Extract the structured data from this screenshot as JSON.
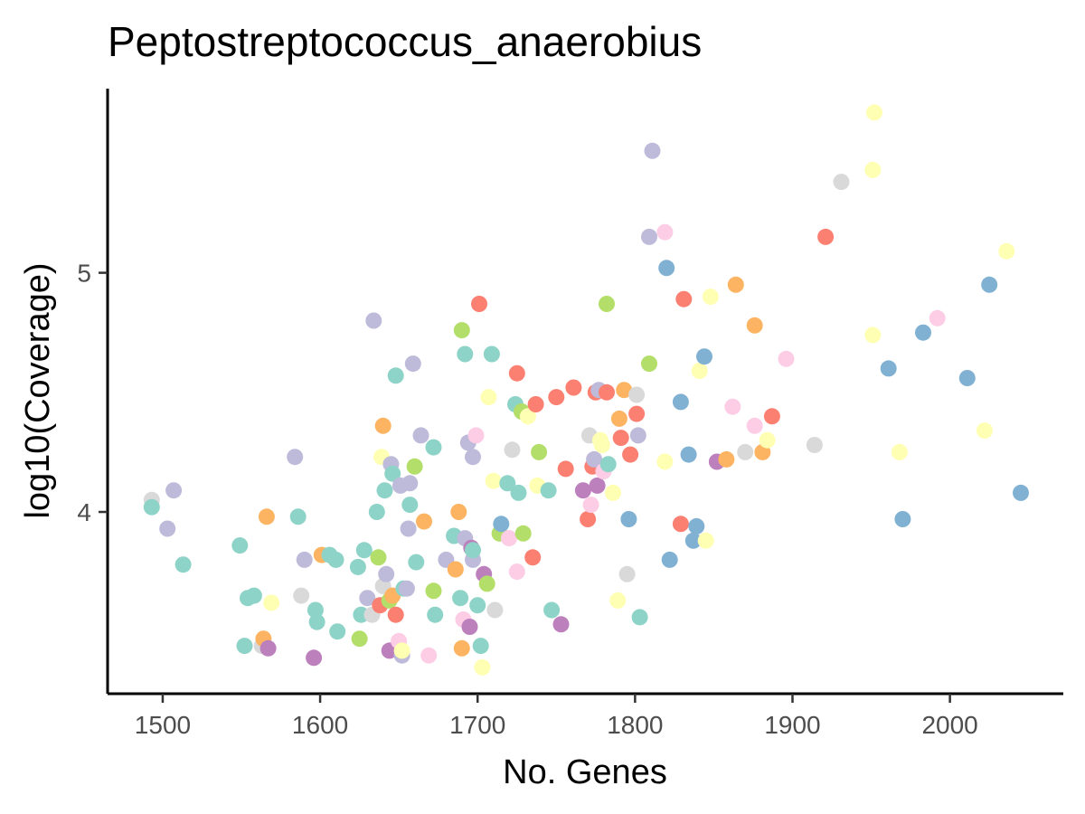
{
  "chart_data": {
    "type": "scatter",
    "title": "Peptostreptococcus_anaerobius",
    "xlabel": "No. Genes",
    "ylabel": "log10(Coverage)",
    "xlim": [
      1465,
      2072
    ],
    "ylim": [
      3.24,
      5.77
    ],
    "x_ticks": [
      1500,
      1600,
      1700,
      1800,
      1900,
      2000
    ],
    "x_tick_labels": [
      "1500",
      "1600",
      "1700",
      "1800",
      "1900",
      "2000"
    ],
    "y_ticks": [
      4,
      5
    ],
    "y_tick_labels": [
      "4",
      "5"
    ],
    "grid": false,
    "legend": "none",
    "palette": {
      "teal": "#8DD3C7",
      "yellow": "#FFFFB3",
      "lavender": "#BEBADA",
      "salmon": "#FB8072",
      "blue": "#80B1D3",
      "orange": "#FDB462",
      "green": "#B3DE69",
      "pink": "#FCCDE5",
      "gray": "#D9D9D9",
      "purple": "#BC80BD"
    },
    "points": [
      {
        "x": 1493,
        "y": 4.05,
        "c": "gray"
      },
      {
        "x": 1493,
        "y": 4.02,
        "c": "teal"
      },
      {
        "x": 1507,
        "y": 4.09,
        "c": "lavender"
      },
      {
        "x": 1503,
        "y": 3.93,
        "c": "lavender"
      },
      {
        "x": 1513,
        "y": 3.78,
        "c": "teal"
      },
      {
        "x": 1549,
        "y": 3.86,
        "c": "teal"
      },
      {
        "x": 1552,
        "y": 3.44,
        "c": "teal"
      },
      {
        "x": 1554,
        "y": 3.64,
        "c": "teal"
      },
      {
        "x": 1558,
        "y": 3.65,
        "c": "teal"
      },
      {
        "x": 1563,
        "y": 3.44,
        "c": "gray"
      },
      {
        "x": 1564,
        "y": 3.47,
        "c": "orange"
      },
      {
        "x": 1567,
        "y": 3.43,
        "c": "purple"
      },
      {
        "x": 1566,
        "y": 3.98,
        "c": "orange"
      },
      {
        "x": 1569,
        "y": 3.62,
        "c": "yellow"
      },
      {
        "x": 1584,
        "y": 4.23,
        "c": "lavender"
      },
      {
        "x": 1586,
        "y": 3.98,
        "c": "teal"
      },
      {
        "x": 1588,
        "y": 3.65,
        "c": "gray"
      },
      {
        "x": 1590,
        "y": 3.8,
        "c": "lavender"
      },
      {
        "x": 1596,
        "y": 3.39,
        "c": "purple"
      },
      {
        "x": 1597,
        "y": 3.59,
        "c": "teal"
      },
      {
        "x": 1598,
        "y": 3.54,
        "c": "teal"
      },
      {
        "x": 1601,
        "y": 3.82,
        "c": "orange"
      },
      {
        "x": 1606,
        "y": 3.82,
        "c": "teal"
      },
      {
        "x": 1610,
        "y": 3.8,
        "c": "teal"
      },
      {
        "x": 1611,
        "y": 3.5,
        "c": "teal"
      },
      {
        "x": 1624,
        "y": 3.77,
        "c": "teal"
      },
      {
        "x": 1625,
        "y": 3.47,
        "c": "green"
      },
      {
        "x": 1626,
        "y": 3.57,
        "c": "teal"
      },
      {
        "x": 1628,
        "y": 3.84,
        "c": "teal"
      },
      {
        "x": 1630,
        "y": 3.64,
        "c": "lavender"
      },
      {
        "x": 1633,
        "y": 3.57,
        "c": "gray"
      },
      {
        "x": 1634,
        "y": 4.8,
        "c": "lavender"
      },
      {
        "x": 1636,
        "y": 4.0,
        "c": "teal"
      },
      {
        "x": 1637,
        "y": 3.81,
        "c": "green"
      },
      {
        "x": 1638,
        "y": 3.61,
        "c": "salmon"
      },
      {
        "x": 1639,
        "y": 4.23,
        "c": "yellow"
      },
      {
        "x": 1640,
        "y": 4.36,
        "c": "orange"
      },
      {
        "x": 1640,
        "y": 3.69,
        "c": "gray"
      },
      {
        "x": 1641,
        "y": 4.09,
        "c": "teal"
      },
      {
        "x": 1642,
        "y": 3.74,
        "c": "lavender"
      },
      {
        "x": 1644,
        "y": 3.63,
        "c": "green"
      },
      {
        "x": 1644,
        "y": 3.42,
        "c": "purple"
      },
      {
        "x": 1645,
        "y": 4.2,
        "c": "lavender"
      },
      {
        "x": 1646,
        "y": 3.65,
        "c": "orange"
      },
      {
        "x": 1646,
        "y": 4.16,
        "c": "teal"
      },
      {
        "x": 1648,
        "y": 3.57,
        "c": "salmon"
      },
      {
        "x": 1648,
        "y": 4.57,
        "c": "teal"
      },
      {
        "x": 1650,
        "y": 3.46,
        "c": "pink"
      },
      {
        "x": 1651,
        "y": 4.11,
        "c": "lavender"
      },
      {
        "x": 1652,
        "y": 3.4,
        "c": "lavender"
      },
      {
        "x": 1652,
        "y": 3.42,
        "c": "yellow"
      },
      {
        "x": 1653,
        "y": 3.68,
        "c": "teal"
      },
      {
        "x": 1655,
        "y": 3.68,
        "c": "lavender"
      },
      {
        "x": 1656,
        "y": 3.93,
        "c": "lavender"
      },
      {
        "x": 1657,
        "y": 4.12,
        "c": "lavender"
      },
      {
        "x": 1657,
        "y": 4.03,
        "c": "teal"
      },
      {
        "x": 1659,
        "y": 4.62,
        "c": "lavender"
      },
      {
        "x": 1660,
        "y": 4.19,
        "c": "green"
      },
      {
        "x": 1661,
        "y": 3.79,
        "c": "teal"
      },
      {
        "x": 1664,
        "y": 4.32,
        "c": "lavender"
      },
      {
        "x": 1666,
        "y": 3.96,
        "c": "orange"
      },
      {
        "x": 1669,
        "y": 3.4,
        "c": "pink"
      },
      {
        "x": 1672,
        "y": 4.27,
        "c": "teal"
      },
      {
        "x": 1673,
        "y": 3.57,
        "c": "teal"
      },
      {
        "x": 1672,
        "y": 3.67,
        "c": "green"
      },
      {
        "x": 1680,
        "y": 3.8,
        "c": "lavender"
      },
      {
        "x": 1685,
        "y": 3.9,
        "c": "teal"
      },
      {
        "x": 1686,
        "y": 3.76,
        "c": "orange"
      },
      {
        "x": 1688,
        "y": 4.0,
        "c": "orange"
      },
      {
        "x": 1689,
        "y": 3.64,
        "c": "teal"
      },
      {
        "x": 1690,
        "y": 3.43,
        "c": "orange"
      },
      {
        "x": 1690,
        "y": 4.76,
        "c": "green"
      },
      {
        "x": 1691,
        "y": 3.55,
        "c": "pink"
      },
      {
        "x": 1692,
        "y": 3.89,
        "c": "lavender"
      },
      {
        "x": 1692,
        "y": 4.66,
        "c": "teal"
      },
      {
        "x": 1694,
        "y": 4.29,
        "c": "lavender"
      },
      {
        "x": 1695,
        "y": 3.52,
        "c": "purple"
      },
      {
        "x": 1696,
        "y": 3.85,
        "c": "purple"
      },
      {
        "x": 1697,
        "y": 3.8,
        "c": "lavender"
      },
      {
        "x": 1697,
        "y": 3.84,
        "c": "teal"
      },
      {
        "x": 1697,
        "y": 4.23,
        "c": "lavender"
      },
      {
        "x": 1699,
        "y": 4.32,
        "c": "pink"
      },
      {
        "x": 1700,
        "y": 3.61,
        "c": "teal"
      },
      {
        "x": 1701,
        "y": 4.87,
        "c": "salmon"
      },
      {
        "x": 1702,
        "y": 3.44,
        "c": "teal"
      },
      {
        "x": 1703,
        "y": 3.35,
        "c": "yellow"
      },
      {
        "x": 1704,
        "y": 3.74,
        "c": "purple"
      },
      {
        "x": 1706,
        "y": 3.7,
        "c": "green"
      },
      {
        "x": 1707,
        "y": 4.48,
        "c": "yellow"
      },
      {
        "x": 1709,
        "y": 4.66,
        "c": "teal"
      },
      {
        "x": 1710,
        "y": 4.13,
        "c": "yellow"
      },
      {
        "x": 1711,
        "y": 3.59,
        "c": "gray"
      },
      {
        "x": 1714,
        "y": 3.91,
        "c": "green"
      },
      {
        "x": 1715,
        "y": 3.95,
        "c": "blue"
      },
      {
        "x": 1719,
        "y": 4.12,
        "c": "teal"
      },
      {
        "x": 1720,
        "y": 3.89,
        "c": "pink"
      },
      {
        "x": 1722,
        "y": 4.26,
        "c": "gray"
      },
      {
        "x": 1724,
        "y": 4.45,
        "c": "teal"
      },
      {
        "x": 1725,
        "y": 3.75,
        "c": "pink"
      },
      {
        "x": 1725,
        "y": 4.58,
        "c": "salmon"
      },
      {
        "x": 1726,
        "y": 4.08,
        "c": "teal"
      },
      {
        "x": 1728,
        "y": 4.42,
        "c": "green"
      },
      {
        "x": 1729,
        "y": 3.91,
        "c": "green"
      },
      {
        "x": 1732,
        "y": 4.4,
        "c": "yellow"
      },
      {
        "x": 1735,
        "y": 3.81,
        "c": "salmon"
      },
      {
        "x": 1737,
        "y": 4.45,
        "c": "salmon"
      },
      {
        "x": 1738,
        "y": 4.11,
        "c": "yellow"
      },
      {
        "x": 1739,
        "y": 4.25,
        "c": "green"
      },
      {
        "x": 1745,
        "y": 4.09,
        "c": "teal"
      },
      {
        "x": 1747,
        "y": 3.59,
        "c": "teal"
      },
      {
        "x": 1750,
        "y": 4.48,
        "c": "salmon"
      },
      {
        "x": 1753,
        "y": 3.53,
        "c": "purple"
      },
      {
        "x": 1756,
        "y": 4.18,
        "c": "salmon"
      },
      {
        "x": 1761,
        "y": 4.52,
        "c": "salmon"
      },
      {
        "x": 1767,
        "y": 4.09,
        "c": "purple"
      },
      {
        "x": 1770,
        "y": 3.97,
        "c": "salmon"
      },
      {
        "x": 1771,
        "y": 4.32,
        "c": "gray"
      },
      {
        "x": 1772,
        "y": 4.03,
        "c": "pink"
      },
      {
        "x": 1773,
        "y": 4.19,
        "c": "salmon"
      },
      {
        "x": 1774,
        "y": 4.22,
        "c": "lavender"
      },
      {
        "x": 1775,
        "y": 4.5,
        "c": "salmon"
      },
      {
        "x": 1776,
        "y": 4.11,
        "c": "purple"
      },
      {
        "x": 1777,
        "y": 4.51,
        "c": "lavender"
      },
      {
        "x": 1778,
        "y": 4.3,
        "c": "yellow"
      },
      {
        "x": 1779,
        "y": 4.28,
        "c": "yellow"
      },
      {
        "x": 1780,
        "y": 4.17,
        "c": "pink"
      },
      {
        "x": 1782,
        "y": 4.5,
        "c": "salmon"
      },
      {
        "x": 1782,
        "y": 4.87,
        "c": "green"
      },
      {
        "x": 1783,
        "y": 4.2,
        "c": "teal"
      },
      {
        "x": 1786,
        "y": 4.08,
        "c": "yellow"
      },
      {
        "x": 1789,
        "y": 3.63,
        "c": "yellow"
      },
      {
        "x": 1790,
        "y": 4.39,
        "c": "orange"
      },
      {
        "x": 1791,
        "y": 4.31,
        "c": "salmon"
      },
      {
        "x": 1793,
        "y": 4.51,
        "c": "orange"
      },
      {
        "x": 1795,
        "y": 3.74,
        "c": "gray"
      },
      {
        "x": 1796,
        "y": 3.97,
        "c": "blue"
      },
      {
        "x": 1797,
        "y": 4.24,
        "c": "salmon"
      },
      {
        "x": 1801,
        "y": 4.49,
        "c": "gray"
      },
      {
        "x": 1801,
        "y": 4.41,
        "c": "salmon"
      },
      {
        "x": 1802,
        "y": 4.32,
        "c": "lavender"
      },
      {
        "x": 1803,
        "y": 3.56,
        "c": "teal"
      },
      {
        "x": 1809,
        "y": 4.62,
        "c": "green"
      },
      {
        "x": 1809,
        "y": 5.15,
        "c": "lavender"
      },
      {
        "x": 1811,
        "y": 5.51,
        "c": "lavender"
      },
      {
        "x": 1819,
        "y": 4.21,
        "c": "yellow"
      },
      {
        "x": 1819,
        "y": 5.17,
        "c": "pink"
      },
      {
        "x": 1820,
        "y": 5.02,
        "c": "blue"
      },
      {
        "x": 1822,
        "y": 3.8,
        "c": "blue"
      },
      {
        "x": 1829,
        "y": 3.95,
        "c": "salmon"
      },
      {
        "x": 1829,
        "y": 4.46,
        "c": "blue"
      },
      {
        "x": 1831,
        "y": 4.89,
        "c": "salmon"
      },
      {
        "x": 1834,
        "y": 4.24,
        "c": "blue"
      },
      {
        "x": 1837,
        "y": 3.88,
        "c": "blue"
      },
      {
        "x": 1839,
        "y": 3.94,
        "c": "blue"
      },
      {
        "x": 1841,
        "y": 4.59,
        "c": "yellow"
      },
      {
        "x": 1844,
        "y": 4.65,
        "c": "blue"
      },
      {
        "x": 1845,
        "y": 3.88,
        "c": "yellow"
      },
      {
        "x": 1848,
        "y": 4.9,
        "c": "yellow"
      },
      {
        "x": 1852,
        "y": 4.21,
        "c": "purple"
      },
      {
        "x": 1858,
        "y": 4.22,
        "c": "orange"
      },
      {
        "x": 1862,
        "y": 4.44,
        "c": "pink"
      },
      {
        "x": 1864,
        "y": 4.95,
        "c": "orange"
      },
      {
        "x": 1870,
        "y": 4.25,
        "c": "gray"
      },
      {
        "x": 1876,
        "y": 4.36,
        "c": "pink"
      },
      {
        "x": 1876,
        "y": 4.78,
        "c": "orange"
      },
      {
        "x": 1881,
        "y": 4.25,
        "c": "orange"
      },
      {
        "x": 1884,
        "y": 4.3,
        "c": "yellow"
      },
      {
        "x": 1887,
        "y": 4.4,
        "c": "salmon"
      },
      {
        "x": 1896,
        "y": 4.64,
        "c": "pink"
      },
      {
        "x": 1914,
        "y": 4.28,
        "c": "gray"
      },
      {
        "x": 1921,
        "y": 5.15,
        "c": "salmon"
      },
      {
        "x": 1931,
        "y": 5.38,
        "c": "gray"
      },
      {
        "x": 1951,
        "y": 5.43,
        "c": "yellow"
      },
      {
        "x": 1951,
        "y": 4.74,
        "c": "yellow"
      },
      {
        "x": 1952,
        "y": 5.67,
        "c": "yellow"
      },
      {
        "x": 1961,
        "y": 4.6,
        "c": "blue"
      },
      {
        "x": 1968,
        "y": 4.25,
        "c": "yellow"
      },
      {
        "x": 1970,
        "y": 3.97,
        "c": "blue"
      },
      {
        "x": 1983,
        "y": 4.75,
        "c": "blue"
      },
      {
        "x": 1992,
        "y": 4.81,
        "c": "pink"
      },
      {
        "x": 2011,
        "y": 4.56,
        "c": "blue"
      },
      {
        "x": 2022,
        "y": 4.34,
        "c": "yellow"
      },
      {
        "x": 2025,
        "y": 4.95,
        "c": "blue"
      },
      {
        "x": 2036,
        "y": 5.09,
        "c": "yellow"
      },
      {
        "x": 2045,
        "y": 4.08,
        "c": "blue"
      }
    ]
  }
}
